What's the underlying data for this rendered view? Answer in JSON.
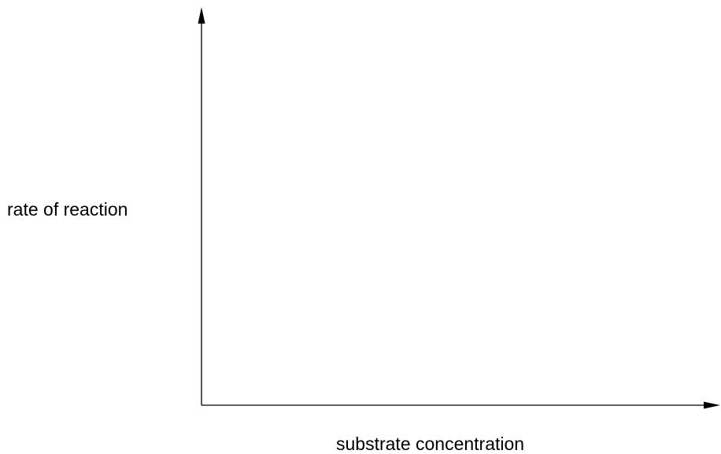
{
  "diagram": {
    "ylabel": "rate of reaction",
    "xlabel": "substrate concentration",
    "axis_color": "#000000"
  }
}
